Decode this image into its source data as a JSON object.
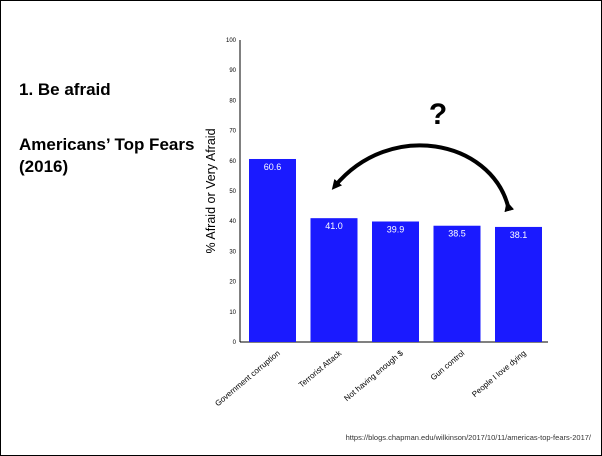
{
  "slide": {
    "heading": "1. Be afraid",
    "subheading": "Americans’ Top Fears (2016)",
    "source": "https://blogs.chapman.edu/wilkinson/2017/10/11/americas-top-fears-2017/",
    "annotation": "?"
  },
  "colors": {
    "bar": "#1a1aff",
    "axis": "#000000",
    "label": "#ffffff"
  },
  "chart_data": {
    "type": "bar",
    "title": "",
    "xlabel": "",
    "ylabel": "% Afraid or Very Afraid",
    "ylim": [
      0,
      100
    ],
    "yticks": [
      0,
      10,
      20,
      30,
      40,
      50,
      60,
      70,
      80,
      90,
      100
    ],
    "categories": [
      "Government corruption",
      "Terrorist Attack",
      "Not having enough $",
      "Gun control",
      "People I love dying"
    ],
    "values": [
      60.6,
      41.0,
      39.9,
      38.5,
      38.1
    ],
    "data_labels": [
      "60.6",
      "41.0",
      "39.9",
      "38.5",
      "38.1"
    ],
    "grid": false,
    "legend": "none"
  }
}
